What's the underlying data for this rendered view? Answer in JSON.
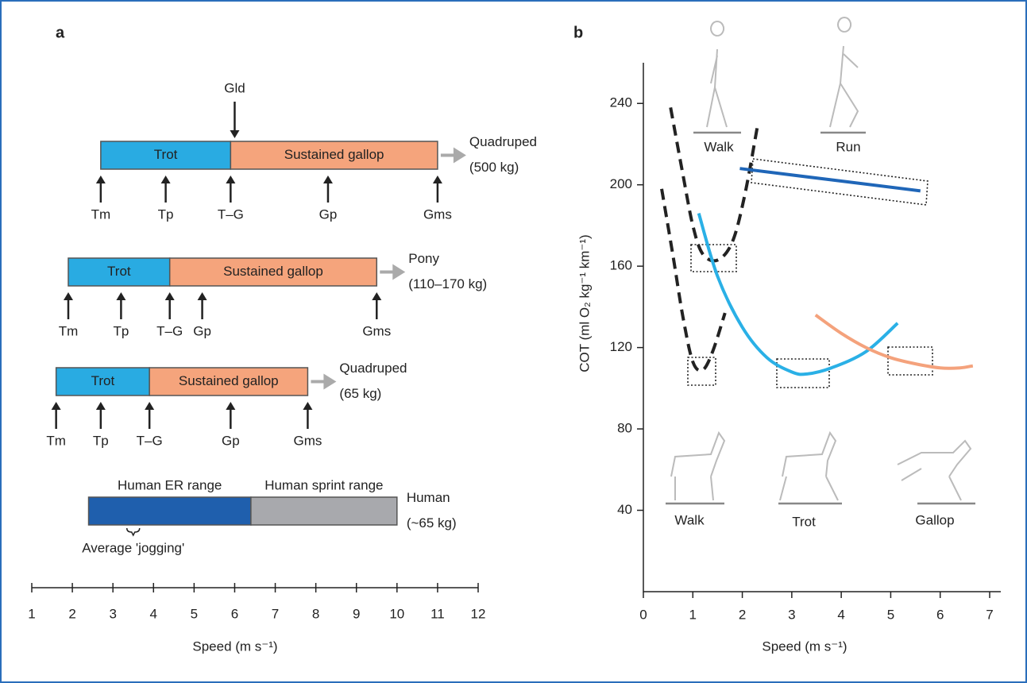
{
  "chart_data": [
    {
      "type": "range",
      "panel_label": "a",
      "xlabel": "Speed  (m s⁻¹)",
      "xlim": [
        1,
        12
      ],
      "xticks": [
        1,
        2,
        3,
        4,
        5,
        6,
        7,
        8,
        9,
        10,
        11,
        12
      ],
      "rows": [
        {
          "label": [
            "Quadruped",
            "(500 kg)"
          ],
          "segments": [
            {
              "label": "Trot",
              "start": 2.7,
              "end": 5.9,
              "color": "#29abe2"
            },
            {
              "label": "Sustained gallop",
              "start": 5.9,
              "end": 11.0,
              "color": "#f5a47c"
            }
          ],
          "markers": [
            {
              "label": "Tm",
              "value": 2.7
            },
            {
              "label": "Tp",
              "value": 4.3
            },
            {
              "label": "T–G",
              "value": 5.9
            },
            {
              "label": "Gp",
              "value": 8.3
            },
            {
              "label": "Gms",
              "value": 11.0
            }
          ],
          "annotations": [
            {
              "text": "Gld",
              "value": 6.0,
              "position": "above"
            }
          ]
        },
        {
          "label": [
            "Pony",
            "(110–170 kg)"
          ],
          "segments": [
            {
              "label": "Trot",
              "start": 1.9,
              "end": 4.4,
              "color": "#29abe2"
            },
            {
              "label": "Sustained gallop",
              "start": 4.4,
              "end": 9.5,
              "color": "#f5a47c"
            }
          ],
          "markers": [
            {
              "label": "Tm",
              "value": 1.9
            },
            {
              "label": "Tp",
              "value": 3.2
            },
            {
              "label": "T–G",
              "value": 4.4
            },
            {
              "label": "Gp",
              "value": 5.2
            },
            {
              "label": "Gms",
              "value": 9.5
            }
          ]
        },
        {
          "label": [
            "Quadruped",
            "(65 kg)"
          ],
          "segments": [
            {
              "label": "Trot",
              "start": 1.6,
              "end": 3.9,
              "color": "#29abe2"
            },
            {
              "label": "Sustained gallop",
              "start": 3.9,
              "end": 7.8,
              "color": "#f5a47c"
            }
          ],
          "markers": [
            {
              "label": "Tm",
              "value": 1.6
            },
            {
              "label": "Tp",
              "value": 2.7
            },
            {
              "label": "T–G",
              "value": 3.9
            },
            {
              "label": "Gp",
              "value": 5.9
            },
            {
              "label": "Gms",
              "value": 7.8
            }
          ]
        },
        {
          "label": [
            "Human",
            "(~65 kg)"
          ],
          "segments": [
            {
              "label": "Human ER range",
              "start": 2.4,
              "end": 6.4,
              "color": "#1f5fad"
            },
            {
              "label": "Human sprint range",
              "start": 6.4,
              "end": 10.0,
              "color": "#a8a9ad"
            }
          ],
          "annotations": [
            {
              "text": "Average 'jogging'",
              "value": 3.5,
              "position": "below"
            }
          ]
        }
      ]
    },
    {
      "type": "line",
      "panel_label": "b",
      "xlabel": "Speed  (m s⁻¹)",
      "ylabel": "COT (ml O₂ kg⁻¹ km⁻¹)",
      "xlim": [
        0,
        7
      ],
      "xticks": [
        0,
        1,
        2,
        3,
        4,
        5,
        6,
        7
      ],
      "ylim": [
        0,
        260
      ],
      "yticks": [
        40,
        80,
        120,
        160,
        200,
        240
      ],
      "series": [
        {
          "color": "#222222",
          "dashed": true,
          "x": [
            0.55,
            0.8,
            1.0,
            1.2,
            1.5,
            1.8,
            2.05,
            2.3
          ],
          "y": [
            238,
            205,
            180,
            166,
            163,
            172,
            195,
            228
          ]
        },
        {
          "color": "#1f66b8",
          "dashed": false,
          "x": [
            1.95,
            5.6
          ],
          "y": [
            208,
            197
          ]
        },
        {
          "color": "#222222",
          "dashed": true,
          "x": [
            0.37,
            0.6,
            0.8,
            1.0,
            1.2,
            1.4,
            1.65
          ],
          "y": [
            198,
            165,
            135,
            113,
            109,
            118,
            137
          ]
        },
        {
          "color": "#2ab0e6",
          "dashed": false,
          "x": [
            1.12,
            1.5,
            2.0,
            2.5,
            3.0,
            3.3,
            3.8,
            4.5,
            5.14
          ],
          "y": [
            186,
            155,
            130,
            115,
            108,
            107,
            110,
            118,
            132
          ]
        },
        {
          "color": "#f4a27c",
          "dashed": false,
          "x": [
            3.48,
            4.0,
            4.5,
            5.0,
            5.5,
            6.0,
            6.4,
            6.66
          ],
          "y": [
            136,
            127,
            120,
            115,
            112,
            110,
            110,
            111
          ]
        }
      ],
      "image_labels": [
        "Walk",
        "Run",
        "Walk",
        "Trot",
        "Gallop"
      ]
    }
  ]
}
